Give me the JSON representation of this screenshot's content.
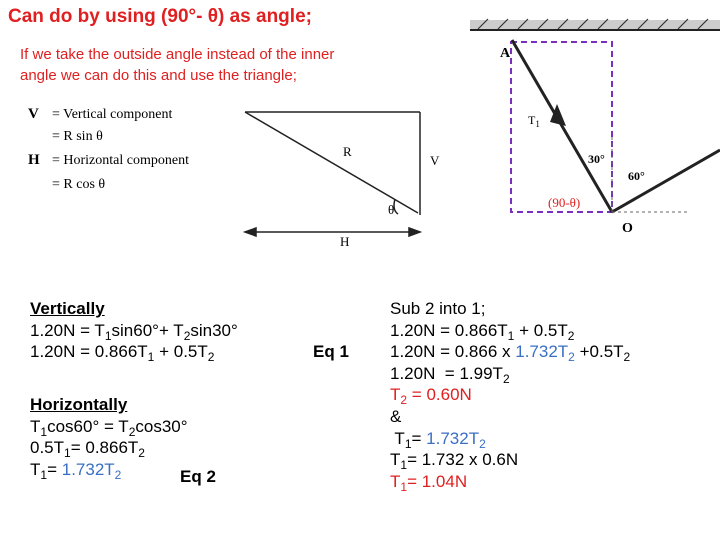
{
  "header": {
    "title": "Can do by using (90°- θ) as angle;",
    "subtitle": [
      "If we take the outside angle instead of the inner",
      "angle we can do this and use the triangle;"
    ]
  },
  "figure_left": {
    "legend": [
      [
        "V",
        "= Vertical component"
      ],
      [
        "",
        "= R sin θ"
      ],
      [
        "H",
        "= Horizontal component"
      ],
      [
        "",
        "= R cos θ"
      ]
    ],
    "labels": {
      "hypotenuse": "R",
      "vertical": "V",
      "horizontal": "H",
      "angle": "θ"
    }
  },
  "figure_right": {
    "labels": {
      "anchor": "A",
      "tension": "T",
      "tension_sub": "1",
      "angle_a": "30°",
      "angle_b": "60°",
      "origin": "O",
      "outside_angle": "(90-θ)"
    }
  },
  "left_column": {
    "vertical": [
      [
        {
          "text": "Vertically",
          "style": "heading"
        }
      ],
      [
        {
          "text": "1.20N = T"
        },
        {
          "text": "1",
          "style": "sub"
        },
        {
          "text": "sin60°+ T"
        },
        {
          "text": "2",
          "style": "sub"
        },
        {
          "text": "sin30°"
        }
      ],
      [
        {
          "text": "1.20N = 0.866T"
        },
        {
          "text": "1",
          "style": "sub"
        },
        {
          "text": " + 0.5T"
        },
        {
          "text": "2",
          "style": "sub"
        }
      ]
    ],
    "horizontal": [
      [
        {
          "text": "Horizontally",
          "style": "heading"
        }
      ],
      [
        {
          "text": "T"
        },
        {
          "text": "1",
          "style": "sub"
        },
        {
          "text": "cos60° = T"
        },
        {
          "text": "2",
          "style": "sub"
        },
        {
          "text": "cos30°"
        }
      ],
      [
        {
          "text": "0.5T"
        },
        {
          "text": "1",
          "style": "sub"
        },
        {
          "text": "= 0.866T"
        },
        {
          "text": "2",
          "style": "sub"
        }
      ],
      [
        {
          "text": "T"
        },
        {
          "text": "1",
          "style": "sub"
        },
        {
          "text": "= "
        },
        {
          "text": "1.732T",
          "color": "#3a6fc4"
        },
        {
          "text": "2",
          "style": "sub",
          "color": "#3a6fc4"
        }
      ]
    ],
    "eq1": "Eq 1",
    "eq2": "Eq 2"
  },
  "right_column": [
    [
      {
        "text": "Sub 2 into 1;"
      }
    ],
    [
      {
        "text": "1.20N = 0.866T"
      },
      {
        "text": "1",
        "style": "sub"
      },
      {
        "text": " + 0.5T"
      },
      {
        "text": "2",
        "style": "sub"
      }
    ],
    [
      {
        "text": "1.20N = 0.866 x "
      },
      {
        "text": "1.732T",
        "color": "#3a6fc4"
      },
      {
        "text": "2",
        "style": "sub",
        "color": "#3a6fc4"
      },
      {
        "text": " +0.5T"
      },
      {
        "text": "2",
        "style": "sub"
      }
    ],
    [
      {
        "text": "1.20N  = 1.99T"
      },
      {
        "text": "2",
        "style": "sub"
      }
    ],
    [
      {
        "text": "T",
        "color": "#e02020"
      },
      {
        "text": "2",
        "style": "sub",
        "color": "#e02020"
      },
      {
        "text": " = 0.60N",
        "color": "#e02020"
      }
    ],
    [
      {
        "text": "&"
      }
    ],
    [
      {
        "text": " T"
      },
      {
        "text": "1",
        "style": "sub"
      },
      {
        "text": "= "
      },
      {
        "text": "1.732T",
        "color": "#3a6fc4"
      },
      {
        "text": "2",
        "style": "sub",
        "color": "#3a6fc4"
      }
    ],
    [
      {
        "text": "T"
      },
      {
        "text": "1",
        "style": "sub"
      },
      {
        "text": "= 1.732 x 0.6N"
      }
    ],
    [
      {
        "text": "T",
        "color": "#e02020"
      },
      {
        "text": "1",
        "style": "sub",
        "color": "#e02020"
      },
      {
        "text": "= 1.04N",
        "color": "#e02020"
      }
    ]
  ]
}
